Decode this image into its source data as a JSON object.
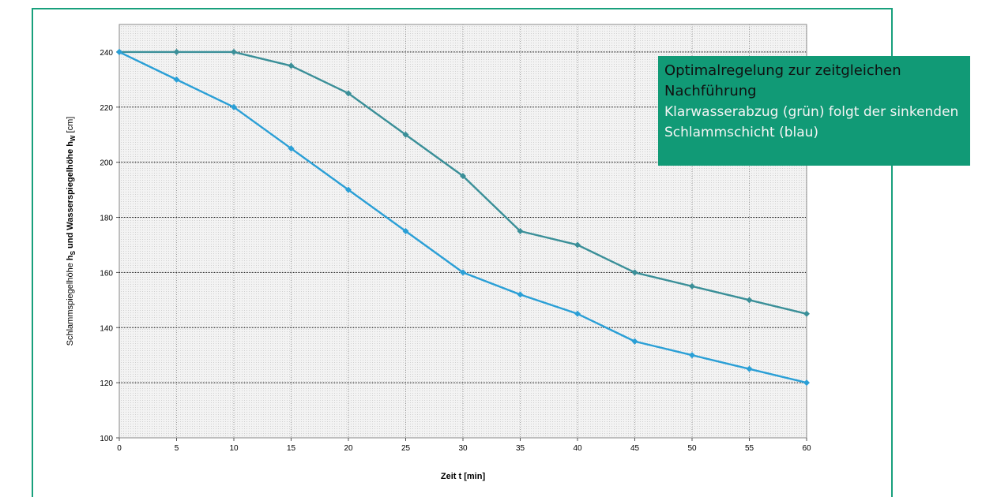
{
  "chart_data": {
    "type": "line",
    "xlabel": "Zeit t [min]",
    "ylabel_parts": [
      "Schlammspiegelhöhe ",
      "h",
      "S",
      " und Wasserspiegelhöhe ",
      "h",
      "W",
      " [cm]"
    ],
    "x": [
      0,
      5,
      10,
      15,
      20,
      25,
      30,
      35,
      40,
      45,
      50,
      55,
      60
    ],
    "xticks": [
      "0",
      "5",
      "10",
      "15",
      "20",
      "25",
      "30",
      "35",
      "40",
      "45",
      "50",
      "55",
      "60"
    ],
    "yticks": [
      "100",
      "120",
      "140",
      "160",
      "180",
      "200",
      "220",
      "240"
    ],
    "xlim": [
      0,
      60
    ],
    "ylim": [
      100,
      250
    ],
    "grid": true,
    "series": [
      {
        "color": "#3a8f98",
        "values": [
          240,
          240,
          240,
          235,
          225,
          210,
          195,
          175,
          170,
          160,
          155,
          150,
          145
        ]
      },
      {
        "color": "#2a9fd6",
        "values": [
          240,
          230,
          220,
          205,
          190,
          175,
          160,
          152,
          145,
          135,
          130,
          125,
          120
        ]
      }
    ]
  },
  "annotation": {
    "title": "Optimalregelung zur zeitgleichen Nachführung",
    "body": "Klarwasserabzug (grün) folgt der sinkenden Schlammschicht (blau)",
    "background": "#119a76"
  },
  "colors": {
    "frame": "#18a07c",
    "plot_bg": "#f0f0f0"
  }
}
